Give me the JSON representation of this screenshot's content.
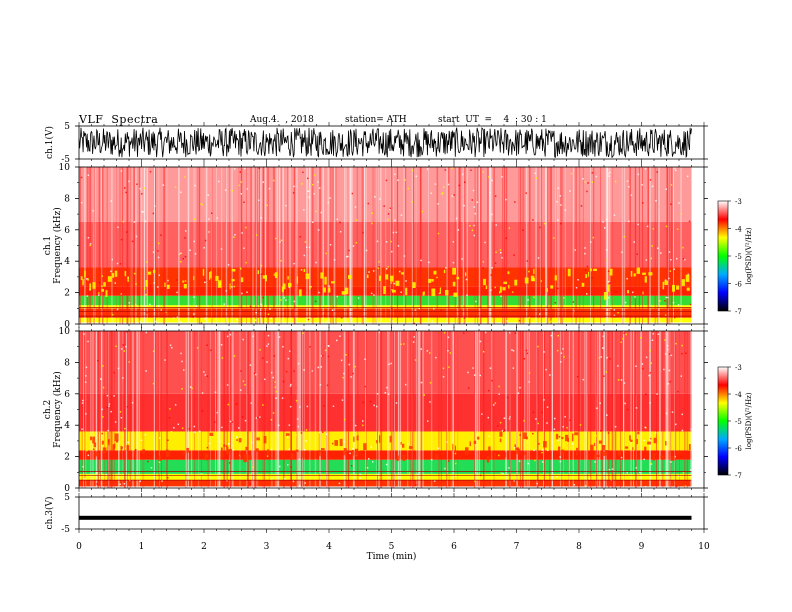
{
  "header": {
    "title": "VLF  Spectra",
    "date": "Aug.4.  , 2018",
    "station": "station= ATH",
    "start": "start  UT  =    4  : 30 : 1"
  },
  "chart_data": [
    {
      "type": "line",
      "panel": "ch1-waveform",
      "ylabel": "ch.1(V)",
      "ylim": [
        -5,
        5
      ],
      "yticks": [
        "5",
        "-5"
      ],
      "xlim": [
        0,
        10
      ],
      "data_end_min": 9.8,
      "amplitude": 4.5
    },
    {
      "type": "heatmap",
      "panel": "ch1-spectrogram",
      "ylabel_line1": "ch.1",
      "ylabel_line2": "Frequency  (kHz)",
      "ylim": [
        0,
        10
      ],
      "yticks": [
        "0",
        "2",
        "4",
        "6",
        "8",
        "10"
      ],
      "xlim": [
        0,
        10
      ],
      "data_end_min": 9.8,
      "bands": [
        {
          "from_khz": 0.0,
          "to_khz": 0.1,
          "color": "#ffffff"
        },
        {
          "from_khz": 0.1,
          "to_khz": 0.4,
          "color": "#ffff00"
        },
        {
          "from_khz": 0.4,
          "to_khz": 1.0,
          "color": "#ff3300"
        },
        {
          "from_khz": 1.0,
          "to_khz": 1.2,
          "color": "#ffff00"
        },
        {
          "from_khz": 1.2,
          "to_khz": 1.8,
          "color": "#33dd33"
        },
        {
          "from_khz": 1.8,
          "to_khz": 2.4,
          "color": "#ff2200"
        },
        {
          "from_khz": 2.4,
          "to_khz": 3.6,
          "color": "#ff3300"
        },
        {
          "from_khz": 3.6,
          "to_khz": 6.5,
          "color": "#ff6060"
        },
        {
          "from_khz": 6.5,
          "to_khz": 10.0,
          "color": "#ff9a9a"
        }
      ]
    },
    {
      "type": "heatmap",
      "panel": "ch2-spectrogram",
      "ylabel_line1": "ch.2",
      "ylabel_line2": "Frequency  (kHz)",
      "ylim": [
        0,
        10
      ],
      "yticks": [
        "0",
        "2",
        "4",
        "6",
        "8",
        "10"
      ],
      "xlim": [
        0,
        10
      ],
      "data_end_min": 9.8,
      "bands": [
        {
          "from_khz": 0.0,
          "to_khz": 0.1,
          "color": "#ffffff"
        },
        {
          "from_khz": 0.1,
          "to_khz": 0.5,
          "color": "#ff3300"
        },
        {
          "from_khz": 0.5,
          "to_khz": 0.9,
          "color": "#ffff00"
        },
        {
          "from_khz": 0.9,
          "to_khz": 1.8,
          "color": "#22dd55"
        },
        {
          "from_khz": 1.8,
          "to_khz": 2.4,
          "color": "#ff2200"
        },
        {
          "from_khz": 2.4,
          "to_khz": 3.6,
          "color": "#ffee00"
        },
        {
          "from_khz": 3.6,
          "to_khz": 6.0,
          "color": "#ff3030"
        },
        {
          "from_khz": 6.0,
          "to_khz": 10.0,
          "color": "#ff5050"
        }
      ]
    },
    {
      "type": "line",
      "panel": "ch3-waveform",
      "ylabel": "ch.3(V)",
      "ylim": [
        -5,
        5
      ],
      "yticks": [
        "5",
        "-5"
      ],
      "xlim": [
        0,
        10
      ],
      "data_end_min": 9.8,
      "level": -1.5,
      "amplitude": 0.4
    }
  ],
  "x_axis": {
    "label": "Time  (min)",
    "ticks": [
      "0",
      "1",
      "2",
      "3",
      "4",
      "5",
      "6",
      "7",
      "8",
      "9",
      "10"
    ]
  },
  "colorbar": {
    "label": "log(PSD)(V²/Hz)",
    "ticks": [
      "-3",
      "-4",
      "-5",
      "-6",
      "-7"
    ],
    "stops": [
      "#ffffff",
      "#ff0000",
      "#ffff00",
      "#00ff00",
      "#00aaff",
      "#0000ff",
      "#000000"
    ]
  }
}
